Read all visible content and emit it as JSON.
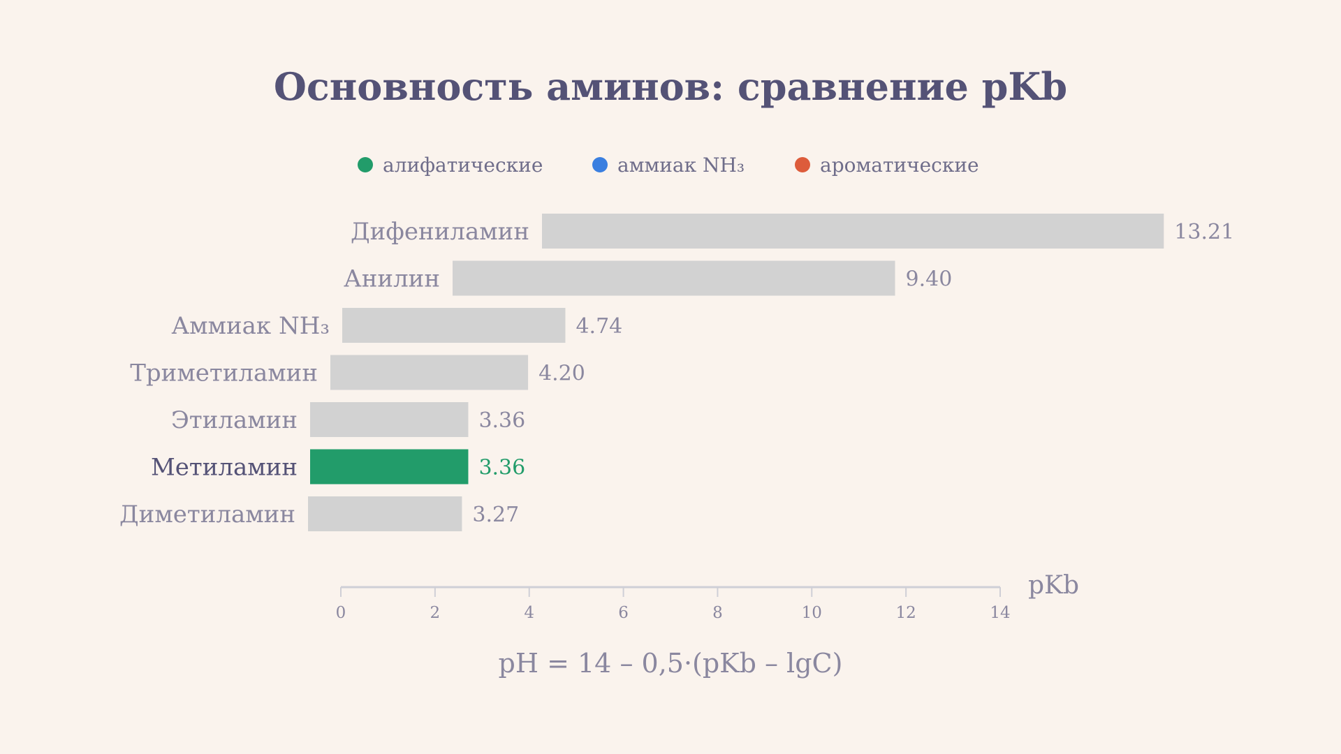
{
  "chart_data": {
    "type": "bar",
    "orientation": "horizontal",
    "title": "Основность аминов: сравнение pKb",
    "xlabel": "pKb",
    "xlim": [
      0,
      14
    ],
    "xticks": [
      "0",
      "2",
      "4",
      "6",
      "8",
      "10",
      "12",
      "14"
    ],
    "grid": false,
    "legend": [
      {
        "name": "алифатические",
        "color": "#229c6a"
      },
      {
        "name": "аммиак NH₃",
        "color": "#3a7fe0"
      },
      {
        "name": "ароматические",
        "color": "#dd5c3b"
      }
    ],
    "categories": [
      "Дифениламин",
      "Анилин",
      "Аммиак NH₃",
      "Триметиламин",
      "Этиламин",
      "Метиламин",
      "Диметиламин"
    ],
    "values": [
      13.21,
      9.4,
      4.74,
      4.2,
      3.36,
      3.36,
      3.27
    ],
    "value_labels": [
      "13.21",
      "9.40",
      "4.74",
      "4.20",
      "3.36",
      "3.36",
      "3.27"
    ],
    "highlighted": "Метиламин",
    "bar_color": "#d2d2d2",
    "highlight_color": "#229c6a"
  },
  "formula": "pH = 14 – 0,5·(pKb – lgC)"
}
